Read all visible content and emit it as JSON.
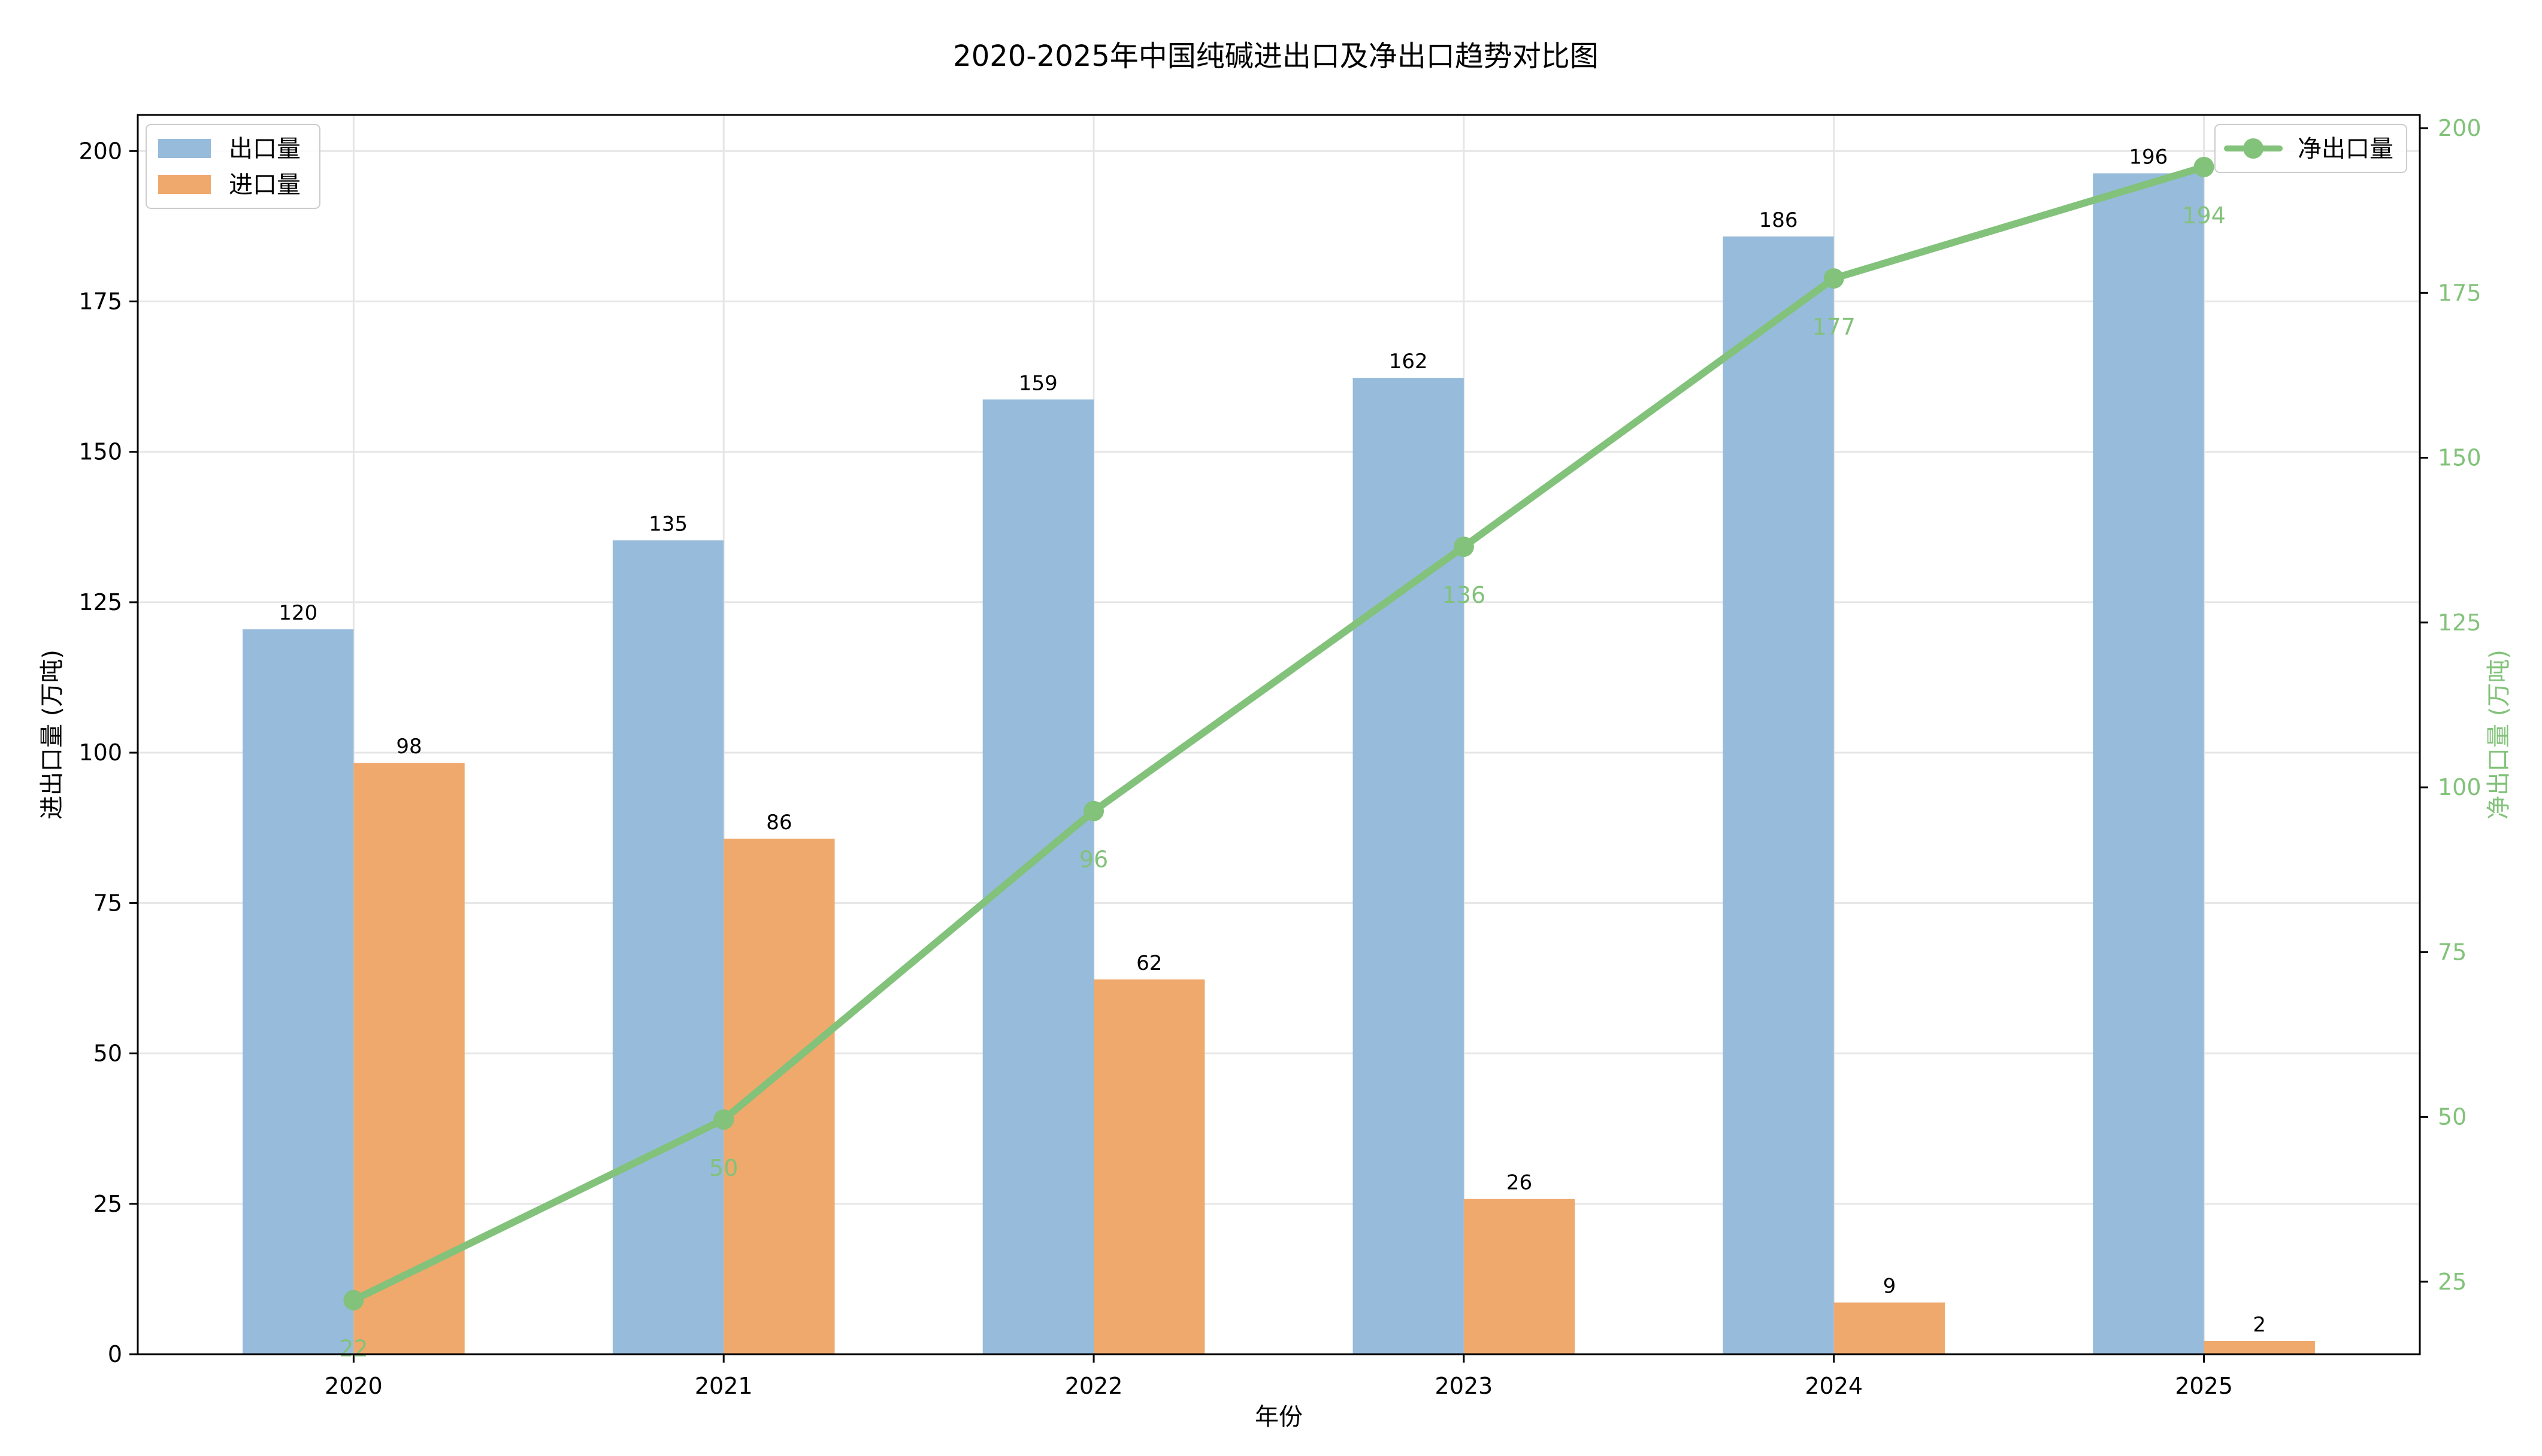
{
  "colors": {
    "export_bar": "#97bbdb",
    "import_bar": "#efa96d",
    "net_line": "#82c27a",
    "grid": "#e6e6e6",
    "axis": "#000000"
  },
  "chart_data": {
    "type": "bar+line",
    "title": "2020-2025年中国纯碱进出口及净出口趋势对比图",
    "xlabel": "年份",
    "ylabel_left": "进出口量 (万吨)",
    "ylabel_right": "净出口量 (万吨)",
    "categories": [
      "2020",
      "2021",
      "2022",
      "2023",
      "2024",
      "2025"
    ],
    "ylim_left": [
      0,
      206
    ],
    "yticks_left": [
      0,
      25,
      50,
      75,
      100,
      125,
      150,
      175,
      200
    ],
    "ylim_right": [
      14,
      202
    ],
    "yticks_right": [
      25,
      50,
      75,
      100,
      125,
      150,
      175,
      200
    ],
    "grid": true,
    "series": [
      {
        "name": "出口量",
        "type": "bar",
        "axis": "left",
        "values": [
          120.5,
          135.3,
          158.7,
          162.3,
          185.8,
          196.3
        ],
        "labels": [
          "120",
          "135",
          "159",
          "162",
          "186",
          "196"
        ]
      },
      {
        "name": "进口量",
        "type": "bar",
        "axis": "left",
        "values": [
          98.3,
          85.7,
          62.3,
          25.8,
          8.6,
          2.2
        ],
        "labels": [
          "98",
          "86",
          "62",
          "26",
          "9",
          "2"
        ]
      },
      {
        "name": "净出口量",
        "type": "line",
        "axis": "right",
        "values": [
          22.2,
          49.6,
          96.4,
          136.5,
          177.2,
          194.1
        ],
        "labels": [
          "22",
          "50",
          "96",
          "136",
          "177",
          "194"
        ]
      }
    ],
    "legend_left": {
      "placement": "top-left",
      "entries": [
        "出口量",
        "进口量"
      ]
    },
    "legend_right": {
      "placement": "top-right",
      "entries": [
        "净出口量"
      ]
    }
  }
}
